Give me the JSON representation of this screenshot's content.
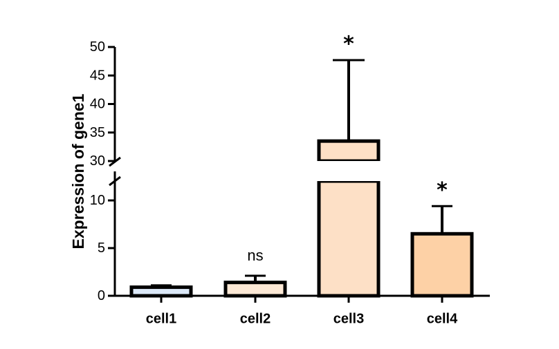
{
  "chart_data": {
    "type": "bar",
    "ylabel": "Expression of gene1",
    "xlabel": "",
    "categories": [
      "cell1",
      "cell2",
      "cell3",
      "cell4"
    ],
    "values": [
      0.9,
      1.4,
      33.5,
      6.5
    ],
    "error": [
      0.2,
      0.7,
      14.2,
      2.9
    ],
    "annotations": [
      "",
      "ns",
      "*",
      "*"
    ],
    "colors": [
      "#dce9f8",
      "#fde9d6",
      "#fde0c6",
      "#fdd1a6"
    ],
    "y_axis_broken": true,
    "y_segments": [
      {
        "range": [
          0,
          13
        ],
        "ticks": [
          0,
          5,
          10
        ]
      },
      {
        "range": [
          30,
          50
        ],
        "ticks": [
          30,
          35,
          40,
          45,
          50
        ]
      }
    ],
    "tick_labels": [
      "0",
      "5",
      "10",
      "30",
      "35",
      "40",
      "45",
      "50"
    ],
    "grid": false,
    "legend": "none"
  }
}
